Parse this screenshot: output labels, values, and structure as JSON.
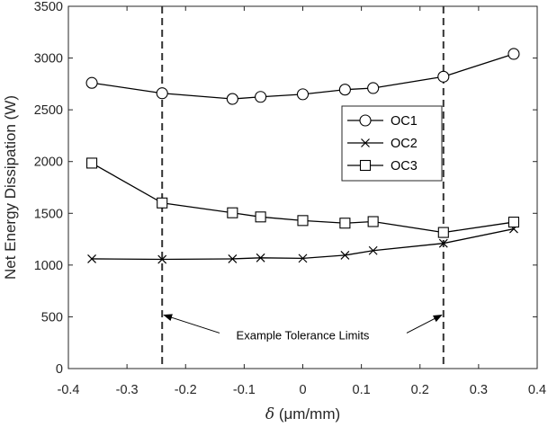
{
  "chart_data": {
    "type": "line",
    "title": "",
    "xlabel_symbol": "δ",
    "xlabel_unit": " (μm/mm)",
    "ylabel": "Net Energy Dissipation (W)",
    "xlim": [
      -0.4,
      0.4
    ],
    "ylim": [
      0,
      3500
    ],
    "xticks": [
      -0.4,
      -0.3,
      -0.2,
      -0.1,
      0,
      0.1,
      0.2,
      0.3,
      0.4
    ],
    "xtick_labels": [
      "-0.4",
      "-0.3",
      "-0.2",
      "-0.1",
      "0",
      "0.1",
      "0.2",
      "0.3",
      "0.4"
    ],
    "yticks": [
      0,
      500,
      1000,
      1500,
      2000,
      2500,
      3000,
      3500
    ],
    "ytick_labels": [
      "0",
      "500",
      "1000",
      "1500",
      "2000",
      "2500",
      "3000",
      "3500"
    ],
    "grid": false,
    "legend_position": "top-right (inside)",
    "x": [
      -0.36,
      -0.24,
      -0.12,
      -0.072,
      0,
      0.072,
      0.12,
      0.24,
      0.36
    ],
    "series": [
      {
        "name": "OC1",
        "marker": "circle",
        "values": [
          2760,
          2660,
          2605,
          2625,
          2650,
          2695,
          2710,
          2820,
          3040
        ]
      },
      {
        "name": "OC2",
        "marker": "x",
        "values": [
          1060,
          1055,
          1060,
          1070,
          1065,
          1095,
          1140,
          1210,
          1350
        ]
      },
      {
        "name": "OC3",
        "marker": "square",
        "values": [
          1985,
          1600,
          1505,
          1465,
          1430,
          1405,
          1420,
          1315,
          1415
        ]
      }
    ],
    "reference_lines": [
      {
        "x": -0.24,
        "style": "dashed"
      },
      {
        "x": 0.24,
        "style": "dashed"
      }
    ],
    "annotation": {
      "text": "Example Tolerance Limits",
      "y": 465
    }
  }
}
